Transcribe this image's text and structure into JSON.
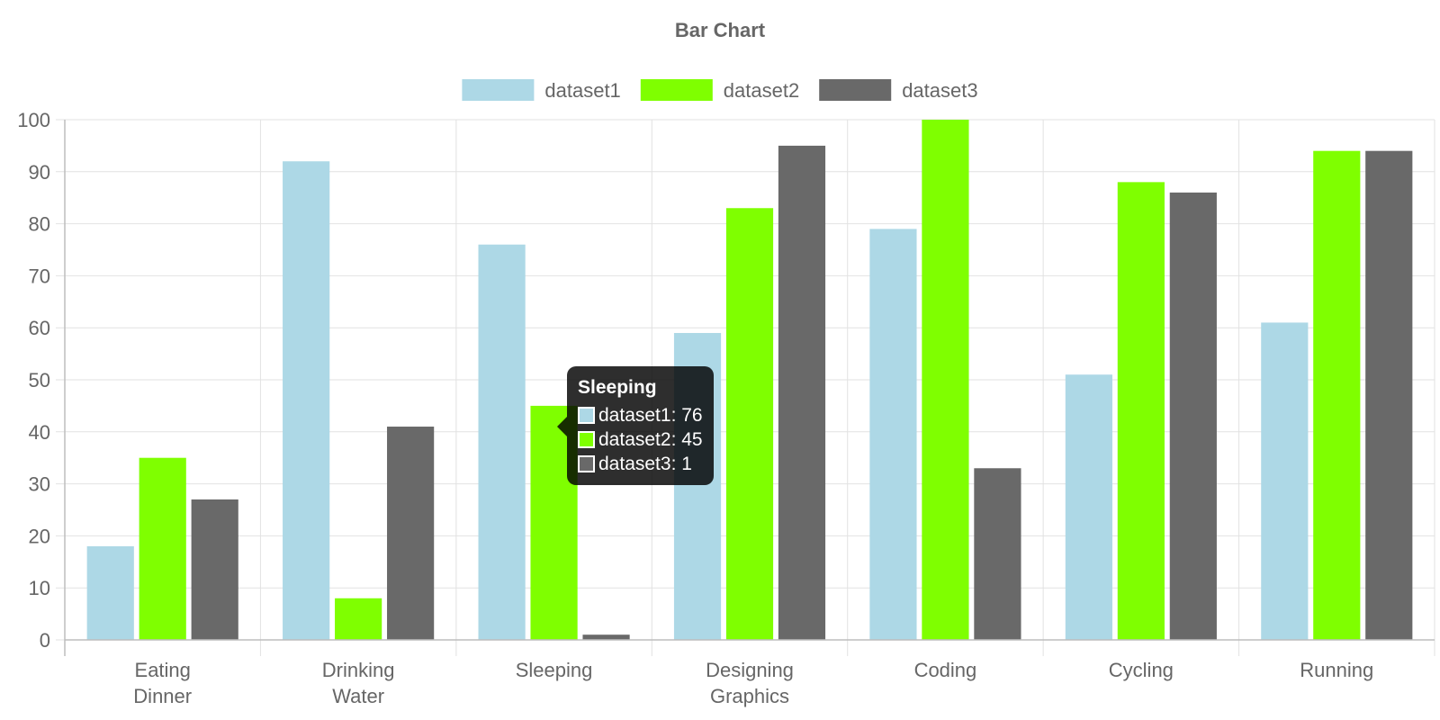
{
  "chart_data": {
    "type": "bar",
    "title": "Bar Chart",
    "categories": [
      [
        "Eating",
        "Dinner"
      ],
      [
        "Drinking",
        "Water"
      ],
      [
        "Sleeping"
      ],
      [
        "Designing",
        "Graphics"
      ],
      [
        "Coding"
      ],
      [
        "Cycling"
      ],
      [
        "Running"
      ]
    ],
    "series": [
      {
        "name": "dataset1",
        "color": "#add8e6",
        "values": [
          18,
          92,
          76,
          59,
          79,
          51,
          61
        ]
      },
      {
        "name": "dataset2",
        "color": "#7fff00",
        "values": [
          35,
          8,
          45,
          83,
          100,
          88,
          94
        ]
      },
      {
        "name": "dataset3",
        "color": "#696969",
        "values": [
          27,
          41,
          1,
          95,
          33,
          86,
          94
        ]
      }
    ],
    "ylim": [
      0,
      100
    ],
    "yticks": [
      0,
      10,
      20,
      30,
      40,
      50,
      60,
      70,
      80,
      90,
      100
    ],
    "grid": true,
    "legend_position": "top-center"
  },
  "tooltip": {
    "title": "Sleeping",
    "rows": [
      {
        "label": "dataset1: 76",
        "color": "#add8e6"
      },
      {
        "label": "dataset2: 45",
        "color": "#7fff00"
      },
      {
        "label": "dataset3: 1",
        "color": "#696969"
      }
    ]
  }
}
